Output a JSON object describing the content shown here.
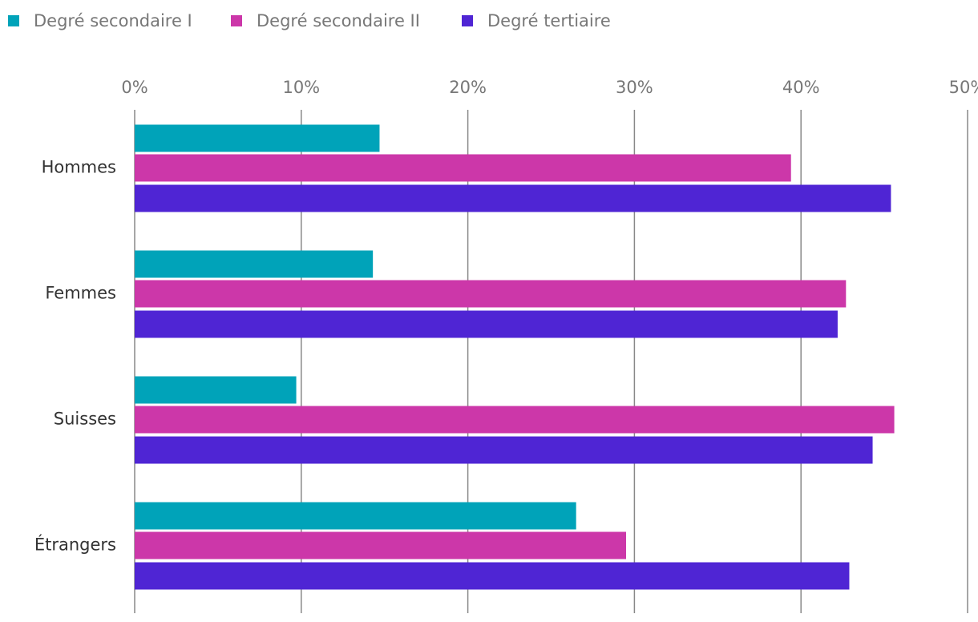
{
  "chart_data": {
    "type": "bar",
    "orientation": "horizontal",
    "categories": [
      "Hommes",
      "Femmes",
      "Suisses",
      "Étrangers"
    ],
    "series": [
      {
        "name": "Degré secondaire I",
        "color": "#00a3b9",
        "values": [
          14.7,
          14.3,
          9.7,
          26.5
        ]
      },
      {
        "name": "Degré secondaire II",
        "color": "#cc37a9",
        "values": [
          39.4,
          42.7,
          45.6,
          29.5
        ]
      },
      {
        "name": "Degré tertiaire",
        "color": "#4f25d4",
        "values": [
          45.4,
          42.2,
          44.3,
          42.9
        ]
      }
    ],
    "xlim": [
      0,
      50
    ],
    "xticks": [
      {
        "value": 0,
        "label": "0%"
      },
      {
        "value": 10,
        "label": "10%"
      },
      {
        "value": 20,
        "label": "20%"
      },
      {
        "value": 30,
        "label": "30%"
      },
      {
        "value": 40,
        "label": "40%"
      },
      {
        "value": 50,
        "label": "50%"
      }
    ],
    "grid": true,
    "legend": "top"
  }
}
